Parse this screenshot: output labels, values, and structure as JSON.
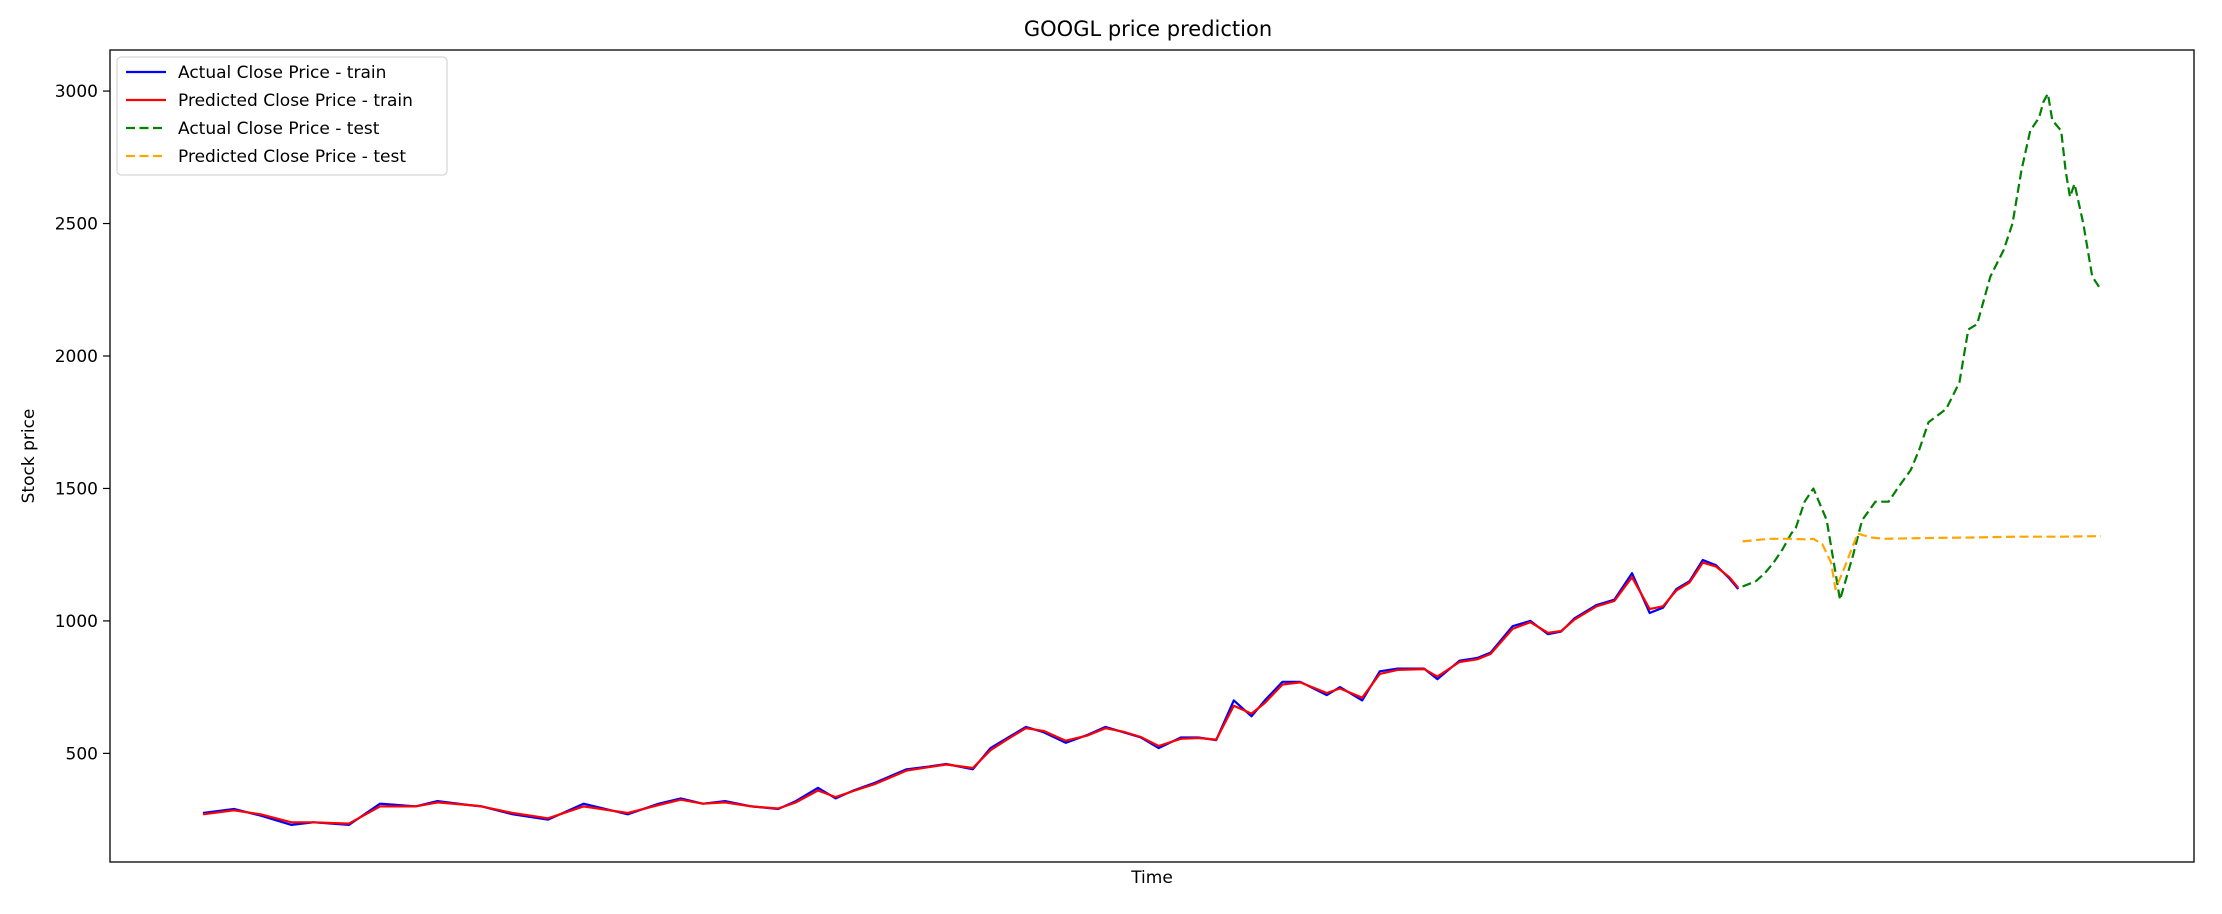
{
  "chart_data": {
    "type": "line",
    "title": "GOOGL price prediction",
    "xlabel": "Time",
    "ylabel": "Stock price",
    "xticks_visible": false,
    "ylim": [
      90,
      3155
    ],
    "yticks": [
      500,
      1000,
      1500,
      2000,
      2500,
      3000
    ],
    "grid": false,
    "legend_position": "top-left",
    "x_index_range": [
      0,
      4290
    ],
    "series": [
      {
        "name": "Actual Close Price - train",
        "color": "#0000ff",
        "style": "solid",
        "x": [
          0,
          70,
          130,
          200,
          250,
          330,
          400,
          480,
          530,
          600,
          630,
          700,
          780,
          860,
          960,
          1030,
          1080,
          1130,
          1180,
          1240,
          1300,
          1340,
          1390,
          1430,
          1470,
          1520,
          1590,
          1640,
          1680,
          1740,
          1780,
          1820,
          1860,
          1900,
          1950,
          2000,
          2040,
          2080,
          2120,
          2160,
          2210,
          2250,
          2290,
          2330,
          2370,
          2400,
          2440,
          2480,
          2540,
          2570,
          2620,
          2660,
          2700,
          2760,
          2790,
          2840,
          2880,
          2910,
          2960,
          3000,
          3040,
          3070,
          3100,
          3150,
          3190,
          3230,
          3270,
          3300,
          3330,
          3360,
          3390,
          3420,
          3450,
          3470
        ],
        "values": [
          275,
          290,
          265,
          230,
          240,
          230,
          310,
          300,
          320,
          305,
          300,
          270,
          250,
          310,
          270,
          310,
          330,
          310,
          320,
          300,
          290,
          320,
          370,
          330,
          360,
          390,
          440,
          450,
          460,
          440,
          520,
          560,
          600,
          580,
          540,
          570,
          600,
          580,
          560,
          520,
          560,
          560,
          550,
          700,
          640,
          700,
          770,
          770,
          720,
          750,
          700,
          810,
          820,
          820,
          780,
          850,
          860,
          880,
          980,
          1000,
          950,
          960,
          1010,
          1060,
          1080,
          1180,
          1030,
          1050,
          1120,
          1150,
          1230,
          1210,
          1160,
          1120
        ]
      },
      {
        "name": "Predicted Close Price - train",
        "color": "#ff0000",
        "style": "solid",
        "x": [
          0,
          70,
          130,
          200,
          250,
          330,
          400,
          480,
          530,
          600,
          630,
          700,
          780,
          860,
          960,
          1030,
          1080,
          1130,
          1180,
          1240,
          1300,
          1340,
          1390,
          1430,
          1470,
          1520,
          1590,
          1640,
          1680,
          1740,
          1780,
          1820,
          1860,
          1900,
          1950,
          2000,
          2040,
          2080,
          2120,
          2160,
          2210,
          2250,
          2290,
          2330,
          2370,
          2400,
          2440,
          2480,
          2540,
          2570,
          2620,
          2660,
          2700,
          2760,
          2790,
          2840,
          2880,
          2910,
          2960,
          3000,
          3040,
          3070,
          3100,
          3150,
          3190,
          3230,
          3270,
          3300,
          3330,
          3360,
          3390,
          3420,
          3450,
          3470
        ],
        "values": [
          270,
          285,
          270,
          240,
          240,
          235,
          300,
          300,
          315,
          305,
          300,
          275,
          255,
          300,
          275,
          305,
          325,
          310,
          315,
          300,
          292,
          315,
          360,
          335,
          358,
          385,
          435,
          448,
          458,
          445,
          512,
          555,
          595,
          585,
          548,
          568,
          595,
          582,
          562,
          528,
          555,
          558,
          552,
          680,
          650,
          690,
          760,
          768,
          728,
          745,
          710,
          800,
          815,
          818,
          790,
          845,
          855,
          875,
          970,
          995,
          955,
          962,
          1005,
          1055,
          1075,
          1165,
          1045,
          1055,
          1115,
          1145,
          1220,
          1205,
          1165,
          1125
        ]
      },
      {
        "name": "Actual Close Price - test",
        "color": "#008000",
        "style": "dashed",
        "x": [
          3480,
          3510,
          3530,
          3550,
          3570,
          3590,
          3600,
          3620,
          3640,
          3670,
          3700,
          3730,
          3750,
          3780,
          3810,
          3830,
          3860,
          3880,
          3900,
          3940,
          3970,
          3990,
          4010,
          4040,
          4070,
          4090,
          4110,
          4130,
          4150,
          4160,
          4170,
          4180,
          4200,
          4210,
          4220,
          4230,
          4250,
          4270,
          4290
        ],
        "values": [
          1130,
          1150,
          1180,
          1220,
          1270,
          1330,
          1350,
          1450,
          1500,
          1380,
          1080,
          1250,
          1380,
          1450,
          1450,
          1500,
          1570,
          1650,
          1750,
          1800,
          1900,
          2100,
          2120,
          2300,
          2400,
          2500,
          2700,
          2850,
          2900,
          2960,
          2990,
          2890,
          2850,
          2700,
          2600,
          2650,
          2500,
          2300,
          2250
        ]
      },
      {
        "name": "Predicted Close Price - test",
        "color": "#ffa500",
        "style": "dashed",
        "x": [
          3480,
          3540,
          3590,
          3620,
          3640,
          3660,
          3680,
          3690,
          3710,
          3740,
          3770,
          3800,
          3900,
          4000,
          4100,
          4200,
          4290
        ],
        "values": [
          1300,
          1310,
          1310,
          1308,
          1310,
          1290,
          1220,
          1120,
          1200,
          1330,
          1315,
          1310,
          1313,
          1315,
          1318,
          1318,
          1320
        ]
      }
    ]
  }
}
